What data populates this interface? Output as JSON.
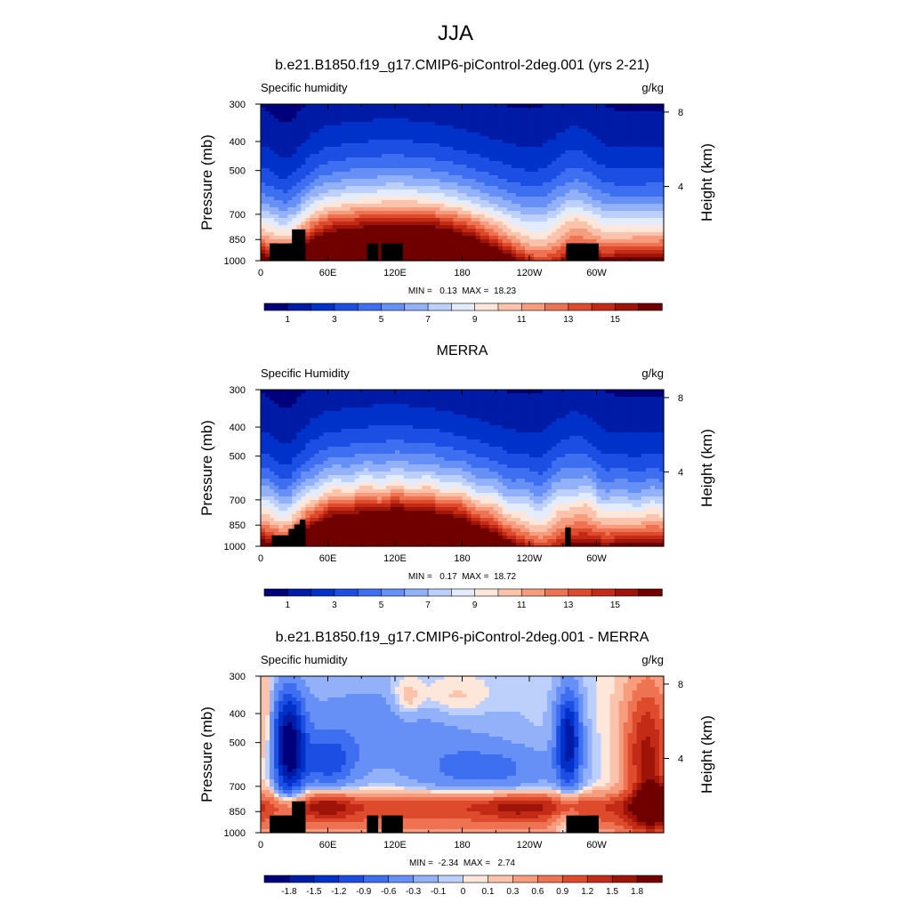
{
  "figure": {
    "title": "JJA"
  },
  "chart_data": [
    {
      "type": "heatmap",
      "title": "b.e21.B1850.f19_g17.CMIP6-piControl-2deg.001 (yrs 2-21)",
      "left_string": "Specific humidity",
      "right_string": "g/kg",
      "ylabel": "Pressure (mb)",
      "ylabel_right": "Height (km)",
      "x_ticks": [
        "0",
        "60E",
        "120E",
        "180",
        "120W",
        "60W"
      ],
      "y_ticks": [
        "300",
        "400",
        "500",
        "700",
        "850",
        "1000"
      ],
      "y_ticks_right": [
        "8",
        "4"
      ],
      "stats": "MIN =   0.13  MAX =  18.23",
      "min": 0.13,
      "max": 18.23,
      "field": "abs",
      "colorbar": {
        "levels": [
          1,
          2,
          3,
          4,
          5,
          6,
          7,
          8,
          9,
          10,
          11,
          12,
          13,
          14,
          15,
          16
        ],
        "labels": [
          "1",
          "3",
          "5",
          "7",
          "9",
          "11",
          "13",
          "15"
        ]
      },
      "blocks": [
        [
          8,
          40,
          0,
          0.11
        ],
        [
          28,
          40,
          0,
          0.2
        ],
        [
          95,
          105,
          0,
          0.11
        ],
        [
          108,
          127,
          0,
          0.11
        ],
        [
          273,
          302,
          0,
          0.11
        ]
      ]
    },
    {
      "type": "heatmap",
      "title": "MERRA",
      "left_string": "Specific Humidity",
      "right_string": "g/kg",
      "ylabel": "Pressure (mb)",
      "ylabel_right": "Height (km)",
      "x_ticks": [
        "0",
        "60E",
        "120E",
        "180",
        "120W",
        "60W"
      ],
      "y_ticks": [
        "300",
        "400",
        "500",
        "700",
        "850",
        "1000"
      ],
      "y_ticks_right": [
        "8",
        "4"
      ],
      "stats": "MIN =   0.17  MAX =  18.72",
      "min": 0.17,
      "max": 18.72,
      "field": "abs",
      "colorbar": {
        "levels": [
          1,
          2,
          3,
          4,
          5,
          6,
          7,
          8,
          9,
          10,
          11,
          12,
          13,
          14,
          15,
          16
        ],
        "labels": [
          "1",
          "3",
          "5",
          "7",
          "9",
          "11",
          "13",
          "15"
        ]
      },
      "blocks": [
        [
          10,
          40,
          0,
          0.07
        ],
        [
          25,
          40,
          0,
          0.11
        ],
        [
          30,
          40,
          0,
          0.14
        ],
        [
          35,
          40,
          0,
          0.17
        ],
        [
          272,
          277,
          0,
          0.12
        ]
      ]
    },
    {
      "type": "heatmap",
      "title": "b.e21.B1850.f19_g17.CMIP6-piControl-2deg.001 - MERRA",
      "left_string": "Specific humidity",
      "right_string": "g/kg",
      "ylabel": "Pressure (mb)",
      "ylabel_right": "Height (km)",
      "x_ticks": [
        "0",
        "60E",
        "120E",
        "180",
        "120W",
        "60W"
      ],
      "y_ticks": [
        "300",
        "400",
        "500",
        "700",
        "850",
        "1000"
      ],
      "y_ticks_right": [
        "8",
        "4"
      ],
      "stats": "MIN =  -2.34  MAX =   2.74",
      "min": -2.34,
      "max": 2.74,
      "field": "diff",
      "colorbar": {
        "levels": [
          -1.8,
          -1.5,
          -1.2,
          -0.9,
          -0.6,
          -0.3,
          -0.1,
          0,
          0.1,
          0.3,
          0.6,
          0.9,
          1.2,
          1.5,
          1.8
        ],
        "labels": [
          "-1.8",
          "-1.5",
          "-1.2",
          "-0.9",
          "-0.6",
          "-0.3",
          "-0.1",
          "0",
          "0.1",
          "0.3",
          "0.6",
          "0.9",
          "1.2",
          "1.5",
          "1.8"
        ]
      },
      "blocks": [
        [
          8,
          40,
          0,
          0.11
        ],
        [
          28,
          40,
          0,
          0.2
        ],
        [
          95,
          105,
          0,
          0.11
        ],
        [
          108,
          127,
          0,
          0.11
        ],
        [
          273,
          302,
          0,
          0.11
        ]
      ]
    }
  ],
  "colors": {
    "palette": [
      "#00007a",
      "#001ba6",
      "#0031c9",
      "#1c4ee3",
      "#3d6ff0",
      "#6690f5",
      "#92b1f9",
      "#bdd0fc",
      "#e3ecfe",
      "#fde6da",
      "#fcc3ac",
      "#f79d7e",
      "#ee7352",
      "#de4a2c",
      "#c32b16",
      "#9e1408",
      "#700000"
    ]
  }
}
